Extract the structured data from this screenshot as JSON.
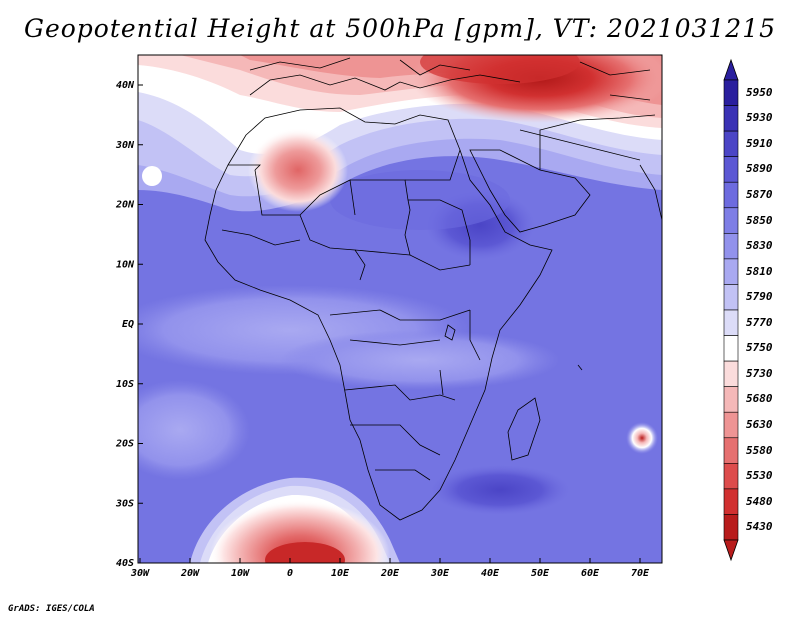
{
  "title": "Geopotential Height at 500hPa [gpm], VT: 2021031215",
  "credit": "GrADS: IGES/COLA",
  "lon_labels": [
    "30W",
    "20W",
    "10W",
    "0",
    "10E",
    "20E",
    "30E",
    "40E",
    "50E",
    "60E",
    "70E"
  ],
  "lat_labels": [
    "40N",
    "30N",
    "20N",
    "10N",
    "EQ",
    "10S",
    "20S",
    "30S",
    "40S"
  ],
  "colorbar": {
    "levels": [
      "5950",
      "5930",
      "5910",
      "5890",
      "5870",
      "5850",
      "5830",
      "5810",
      "5790",
      "5770",
      "5750",
      "5730",
      "5680",
      "5630",
      "5580",
      "5530",
      "5480",
      "5430"
    ],
    "colors": [
      "#2a1f9e",
      "#3a32b5",
      "#4b45c6",
      "#5c58d4",
      "#6d6bdf",
      "#7e7ee6",
      "#9292ec",
      "#a9a9f1",
      "#c2c2f5",
      "#dcdcf8",
      "#ffffff",
      "#fbdcdc",
      "#f5b8b8",
      "#ee9494",
      "#e67070",
      "#dd4c4c",
      "#d13030",
      "#b81c1c"
    ]
  },
  "map": {
    "region": "Africa",
    "lon_range": [
      -30,
      75
    ],
    "lat_range": [
      -40,
      45
    ],
    "variable": "Geopotential Height at 500hPa",
    "units": "gpm",
    "valid_time": "2021031215"
  }
}
